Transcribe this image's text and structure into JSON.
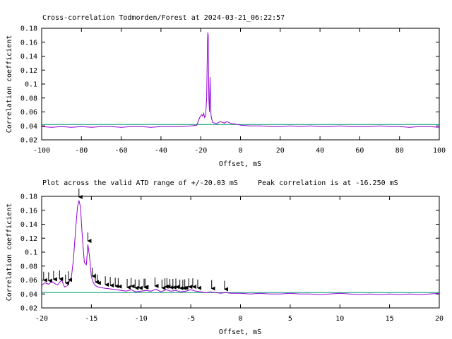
{
  "chart_data": [
    {
      "type": "line",
      "title": "Cross-correlation Todmorden/Forest at 2024-03-21_06:22:57",
      "subtitle_left": "",
      "subtitle_right": "",
      "xlabel": "Offset, mS",
      "ylabel": "Correlation coefficient",
      "xlim": [
        -100,
        100
      ],
      "ylim": [
        0.02,
        0.18
      ],
      "xticks": [
        -100,
        -80,
        -60,
        -40,
        -20,
        0,
        20,
        40,
        60,
        80,
        100
      ],
      "yticks": [
        0.02,
        0.04,
        0.06,
        0.08,
        0.1,
        0.12,
        0.14,
        0.16,
        0.18
      ],
      "grid": false,
      "colors": {
        "correlation": "#9400d3",
        "baseline": "#009e73",
        "arrows": "#000000"
      },
      "baseline": 0.042,
      "series": [
        {
          "x": [
            -100,
            -95,
            -90,
            -85,
            -80,
            -75,
            -70,
            -65,
            -60,
            -55,
            -50,
            -45,
            -40,
            -35,
            -30,
            -25,
            -22,
            -20.5,
            -19.5,
            -19,
            -18.5,
            -18,
            -17.5,
            -17,
            -16.8,
            -16.6,
            -16.4,
            -16.25,
            -16.1,
            -15.9,
            -15.6,
            -15.3,
            -15,
            -14.8,
            -14.5,
            -14,
            -13,
            -12,
            -11,
            -10,
            -9,
            -8,
            -7,
            -6,
            -5,
            -4,
            -3,
            -2,
            -1,
            0,
            5,
            10,
            15,
            20,
            25,
            30,
            35,
            40,
            45,
            50,
            55,
            60,
            65,
            70,
            75,
            80,
            85,
            90,
            95,
            100
          ],
          "values": [
            0.039,
            0.038,
            0.039,
            0.038,
            0.039,
            0.038,
            0.039,
            0.039,
            0.038,
            0.039,
            0.039,
            0.038,
            0.039,
            0.039,
            0.039,
            0.04,
            0.041,
            0.052,
            0.056,
            0.054,
            0.058,
            0.052,
            0.055,
            0.08,
            0.12,
            0.16,
            0.174,
            0.17,
            0.13,
            0.08,
            0.06,
            0.11,
            0.07,
            0.055,
            0.05,
            0.045,
            0.044,
            0.043,
            0.045,
            0.046,
            0.045,
            0.044,
            0.046,
            0.045,
            0.044,
            0.043,
            0.043,
            0.042,
            0.042,
            0.041,
            0.04,
            0.04,
            0.039,
            0.039,
            0.04,
            0.039,
            0.04,
            0.039,
            0.039,
            0.04,
            0.039,
            0.039,
            0.039,
            0.04,
            0.039,
            0.039,
            0.038,
            0.039,
            0.039,
            0.038
          ]
        }
      ],
      "arrows": []
    },
    {
      "type": "line",
      "title": "",
      "subtitle_left": "Plot across the valid ATD range of +/-20.03 mS",
      "subtitle_right": "Peak correlation is at -16.250 mS",
      "xlabel": "Offset, mS",
      "ylabel": "Correlation coefficient",
      "xlim": [
        -20,
        20
      ],
      "ylim": [
        0.02,
        0.18
      ],
      "xticks": [
        -20,
        -15,
        -10,
        -5,
        0,
        5,
        10,
        15,
        20
      ],
      "yticks": [
        0.02,
        0.04,
        0.06,
        0.08,
        0.1,
        0.12,
        0.14,
        0.16,
        0.18
      ],
      "grid": false,
      "colors": {
        "correlation": "#9400d3",
        "baseline": "#009e73",
        "arrows": "#000000"
      },
      "baseline": 0.042,
      "series": [
        {
          "x": [
            -20,
            -19.7,
            -19.3,
            -19,
            -18.7,
            -18.4,
            -18,
            -17.7,
            -17.4,
            -17,
            -16.8,
            -16.6,
            -16.4,
            -16.25,
            -16.1,
            -15.9,
            -15.7,
            -15.5,
            -15.35,
            -15.2,
            -15,
            -14.8,
            -14.6,
            -14.3,
            -14,
            -13.5,
            -13,
            -12.5,
            -12,
            -11.5,
            -11,
            -10.5,
            -10,
            -9.5,
            -9,
            -8.5,
            -8,
            -7.5,
            -7,
            -6.5,
            -6,
            -5.5,
            -5,
            -4.5,
            -4,
            -3.5,
            -3,
            -2.5,
            -2,
            -1.5,
            -1,
            0,
            1,
            2,
            3,
            4,
            5,
            6,
            7,
            8,
            9,
            10,
            11,
            12,
            13,
            14,
            15,
            16,
            17,
            18,
            19,
            20
          ],
          "values": [
            0.052,
            0.056,
            0.054,
            0.058,
            0.055,
            0.053,
            0.06,
            0.05,
            0.052,
            0.065,
            0.09,
            0.13,
            0.165,
            0.174,
            0.165,
            0.12,
            0.085,
            0.082,
            0.111,
            0.095,
            0.065,
            0.056,
            0.052,
            0.05,
            0.049,
            0.048,
            0.047,
            0.046,
            0.045,
            0.044,
            0.046,
            0.043,
            0.044,
            0.045,
            0.044,
            0.047,
            0.043,
            0.046,
            0.044,
            0.045,
            0.043,
            0.044,
            0.046,
            0.044,
            0.043,
            0.042,
            0.043,
            0.042,
            0.041,
            0.042,
            0.041,
            0.041,
            0.04,
            0.041,
            0.04,
            0.04,
            0.041,
            0.04,
            0.04,
            0.039,
            0.04,
            0.041,
            0.04,
            0.039,
            0.04,
            0.039,
            0.04,
            0.039,
            0.04,
            0.039,
            0.04,
            0.041
          ]
        }
      ],
      "arrows": [
        -19.8,
        -19.3,
        -18.8,
        -18.2,
        -17.6,
        -17.3,
        -16.25,
        -15.35,
        -14.9,
        -14.6,
        -14.4,
        -13.6,
        -13.1,
        -12.6,
        -12.3,
        -11.4,
        -11.0,
        -10.6,
        -10.2,
        -9.7,
        -9.6,
        -8.6,
        -7.9,
        -7.6,
        -7.4,
        -7.1,
        -6.8,
        -6.5,
        -6.1,
        -5.8,
        -5.6,
        -5.2,
        -4.8,
        -4.3,
        -2.9,
        -1.6
      ]
    }
  ]
}
